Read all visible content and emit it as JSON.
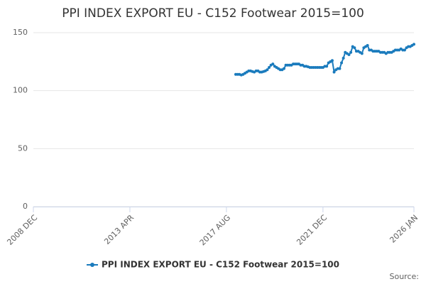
{
  "chart_data": {
    "type": "line",
    "title": "PPI INDEX EXPORT EU - C152 Footwear 2015=100",
    "source": "Source:",
    "x": [
      "2018 JAN",
      "2018 FEB",
      "2018 MAR",
      "2018 APR",
      "2018 MAY",
      "2018 JUN",
      "2018 JUL",
      "2018 AUG",
      "2018 SEP",
      "2018 OCT",
      "2018 NOV",
      "2018 DEC",
      "2019 JAN",
      "2019 FEB",
      "2019 MAR",
      "2019 APR",
      "2019 MAY",
      "2019 JUN",
      "2019 JUL",
      "2019 AUG",
      "2019 SEP",
      "2019 OCT",
      "2019 NOV",
      "2019 DEC",
      "2020 JAN",
      "2020 FEB",
      "2020 MAR",
      "2020 APR",
      "2020 MAY",
      "2020 JUN",
      "2020 JUL",
      "2020 AUG",
      "2020 SEP",
      "2020 OCT",
      "2020 NOV",
      "2020 DEC",
      "2021 JAN",
      "2021 FEB",
      "2021 MAR",
      "2021 APR",
      "2021 MAY",
      "2021 JUN",
      "2021 JUL",
      "2021 AUG",
      "2021 SEP",
      "2021 OCT",
      "2021 NOV",
      "2021 DEC",
      "2022 JAN",
      "2022 FEB",
      "2022 MAR",
      "2022 APR",
      "2022 MAY",
      "2022 JUN",
      "2022 JUL",
      "2022 AUG",
      "2022 SEP",
      "2022 OCT",
      "2022 NOV",
      "2022 DEC",
      "2023 JAN",
      "2023 FEB",
      "2023 MAR",
      "2023 APR",
      "2023 MAY",
      "2023 JUN",
      "2023 JUL",
      "2023 AUG",
      "2023 SEP",
      "2023 OCT",
      "2023 NOV",
      "2023 DEC",
      "2024 JAN",
      "2024 FEB",
      "2024 MAR",
      "2024 APR",
      "2024 MAY",
      "2024 JUN",
      "2024 JUL",
      "2024 AUG",
      "2024 SEP",
      "2024 OCT",
      "2024 NOV",
      "2024 DEC",
      "2025 JAN",
      "2025 FEB",
      "2025 MAR",
      "2025 APR",
      "2025 MAY",
      "2025 JUN",
      "2025 JUL",
      "2025 AUG",
      "2025 SEP",
      "2025 OCT",
      "2025 NOV",
      "2025 DEC",
      "2026 JAN"
    ],
    "series": [
      {
        "name": "PPI INDEX EXPORT EU - C152 Footwear 2015=100",
        "color": "#1a7bbd",
        "values": [
          114,
          114,
          114,
          113.5,
          114,
          115,
          116,
          117,
          117,
          116.5,
          116,
          117,
          117,
          116,
          116,
          116.5,
          117,
          118,
          120,
          122,
          123,
          121,
          120,
          119,
          118,
          118,
          119,
          122,
          122,
          122,
          122,
          123,
          123,
          123,
          123,
          122,
          122,
          121,
          121,
          120.5,
          120,
          120,
          120,
          120,
          120,
          120,
          120,
          120,
          121,
          121,
          124,
          125,
          126,
          116,
          118,
          119,
          119,
          124,
          128,
          133,
          132,
          131,
          133,
          138,
          137,
          134,
          134,
          133,
          132,
          137,
          138,
          139,
          135,
          135,
          134,
          134,
          134,
          134,
          133,
          133,
          133,
          132,
          133,
          133,
          133,
          134,
          135,
          135,
          135,
          136,
          135,
          135,
          137,
          138,
          138,
          139,
          140
        ]
      }
    ],
    "xlim": [
      "2008 DEC",
      "2026 JAN"
    ],
    "xticks": [
      "2008 DEC",
      "2013 APR",
      "2017 AUG",
      "2021 DEC",
      "2026 JAN"
    ],
    "ylim": [
      0,
      150
    ],
    "yticks": [
      0,
      50,
      100,
      150
    ],
    "grid": true
  }
}
